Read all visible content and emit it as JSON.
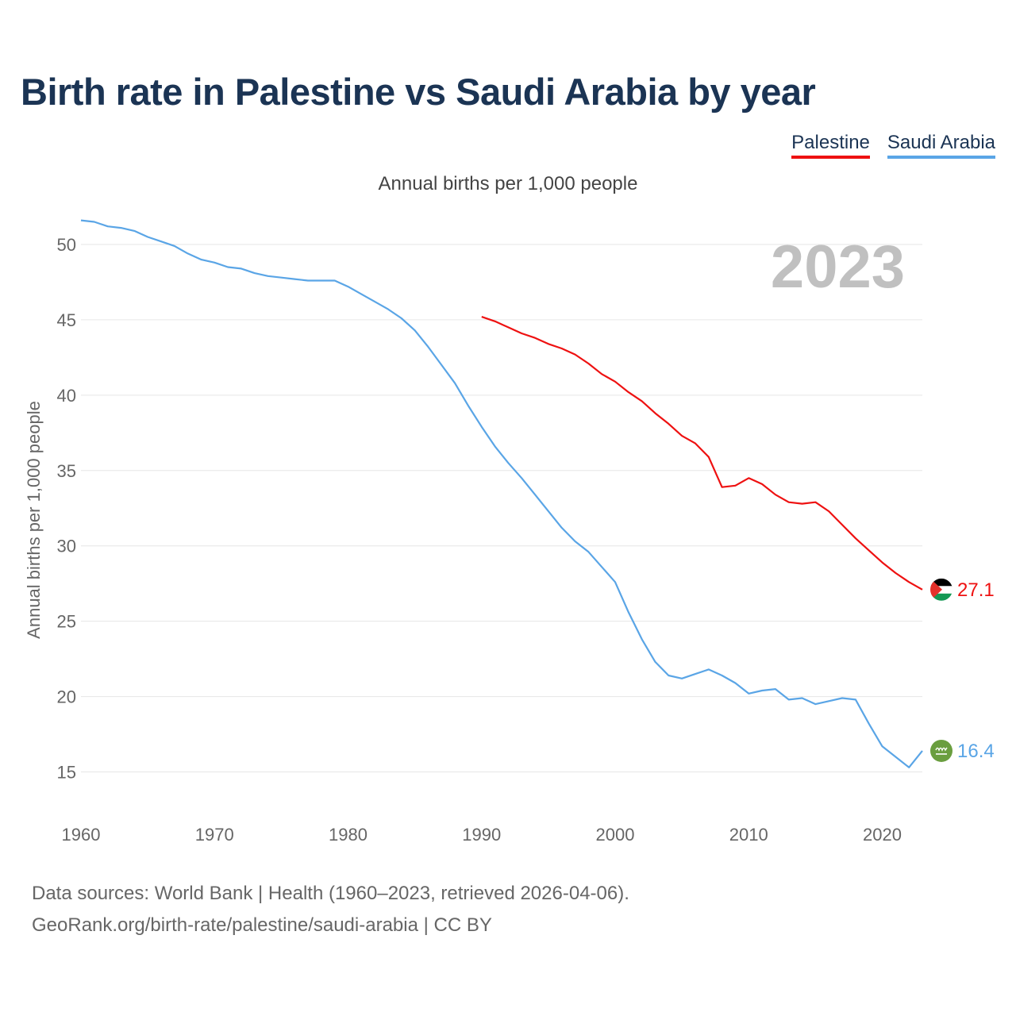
{
  "title": "Birth rate in Palestine vs Saudi Arabia by year",
  "subtitle": "Annual births per 1,000 people",
  "legend": {
    "palestine": "Palestine",
    "saudi": "Saudi Arabia"
  },
  "colors": {
    "palestine": "#ee1111",
    "saudi": "#5aa5e6",
    "flag_black": "#000000",
    "flag_white": "#ffffff",
    "flag_green": "#149954",
    "flag_red": "#e4312b",
    "saudi_flag_green": "#6a9e3f"
  },
  "source": {
    "line1": "Data sources: World Bank | Health (1960–2023, retrieved 2026-04-06).",
    "line2": "GeoRank.org/birth-rate/palestine/saudi-arabia | CC BY"
  },
  "chart_data": {
    "type": "line",
    "title": "Birth rate in Palestine vs Saudi Arabia by year",
    "ylabel": "Annual births per 1,000 people",
    "xlabel": "",
    "xlim": [
      1960,
      2023
    ],
    "ylim": [
      12.5,
      52
    ],
    "x_ticks": [
      1960,
      1970,
      1980,
      1990,
      2000,
      2010,
      2020
    ],
    "y_ticks": [
      15,
      20,
      25,
      30,
      35,
      40,
      45,
      50
    ],
    "year_display": "2023",
    "series": [
      {
        "name": "Palestine",
        "key": "palestine",
        "end_label": "27.1",
        "x": [
          1990,
          1991,
          1992,
          1993,
          1994,
          1995,
          1996,
          1997,
          1998,
          1999,
          2000,
          2001,
          2002,
          2003,
          2004,
          2005,
          2006,
          2007,
          2008,
          2009,
          2010,
          2011,
          2012,
          2013,
          2014,
          2015,
          2016,
          2017,
          2018,
          2019,
          2020,
          2021,
          2022,
          2023
        ],
        "y": [
          45.2,
          44.9,
          44.5,
          44.1,
          43.8,
          43.4,
          43.1,
          42.7,
          42.1,
          41.4,
          40.9,
          40.2,
          39.6,
          38.8,
          38.1,
          37.3,
          36.8,
          35.9,
          33.9,
          34.0,
          34.5,
          34.1,
          33.4,
          32.9,
          32.8,
          32.9,
          32.3,
          31.4,
          30.5,
          29.7,
          28.9,
          28.2,
          27.6,
          27.1
        ]
      },
      {
        "name": "Saudi Arabia",
        "key": "saudi",
        "end_label": "16.4",
        "x": [
          1960,
          1961,
          1962,
          1963,
          1964,
          1965,
          1966,
          1967,
          1968,
          1969,
          1970,
          1971,
          1972,
          1973,
          1974,
          1975,
          1976,
          1977,
          1978,
          1979,
          1980,
          1981,
          1982,
          1983,
          1984,
          1985,
          1986,
          1987,
          1988,
          1989,
          1990,
          1991,
          1992,
          1993,
          1994,
          1995,
          1996,
          1997,
          1998,
          1999,
          2000,
          2001,
          2002,
          2003,
          2004,
          2005,
          2006,
          2007,
          2008,
          2009,
          2010,
          2011,
          2012,
          2013,
          2014,
          2015,
          2016,
          2017,
          2018,
          2019,
          2020,
          2021,
          2022,
          2023
        ],
        "y": [
          51.6,
          51.5,
          51.2,
          51.1,
          50.9,
          50.5,
          50.2,
          49.9,
          49.4,
          49.0,
          48.8,
          48.5,
          48.4,
          48.1,
          47.9,
          47.8,
          47.7,
          47.6,
          47.6,
          47.6,
          47.2,
          46.7,
          46.2,
          45.7,
          45.1,
          44.3,
          43.2,
          42.0,
          40.8,
          39.3,
          37.9,
          36.6,
          35.5,
          34.5,
          33.4,
          32.3,
          31.2,
          30.3,
          29.6,
          28.6,
          27.6,
          25.6,
          23.8,
          22.3,
          21.4,
          21.2,
          21.5,
          21.8,
          21.4,
          20.9,
          20.2,
          20.4,
          20.5,
          19.8,
          19.9,
          19.5,
          19.7,
          19.9,
          19.8,
          18.2,
          16.7,
          16.0,
          15.3,
          16.4
        ]
      }
    ]
  }
}
